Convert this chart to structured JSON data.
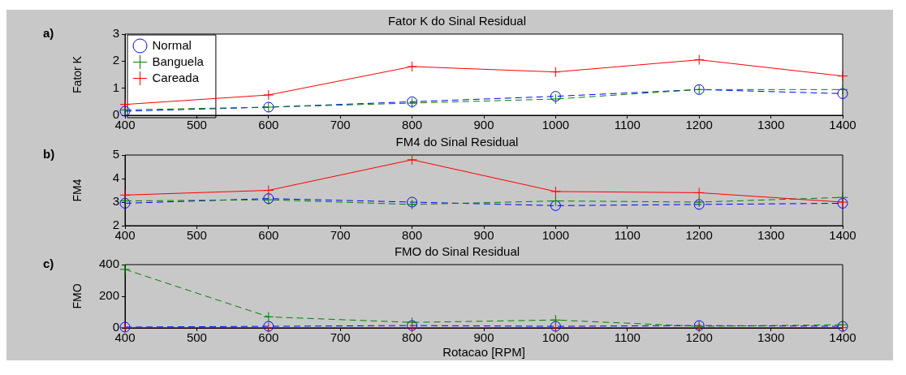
{
  "chart_data": [
    {
      "type": "line",
      "title": "Fator K do Sinal Residual",
      "ylabel": "Fator K",
      "annotations": [
        "a)"
      ],
      "x": [
        400,
        600,
        800,
        1000,
        1200,
        1400
      ],
      "xlim": [
        400,
        1400
      ],
      "xticks": [
        400,
        500,
        600,
        700,
        800,
        900,
        1000,
        1100,
        1200,
        1300,
        1400
      ],
      "ylim": [
        0,
        3
      ],
      "yticks": [
        0,
        1,
        2,
        3
      ],
      "grid": false,
      "legend": "top left",
      "series": [
        {
          "name": "Normal",
          "color": "#0000ff",
          "marker": "circle",
          "line_style": "dashed",
          "values": [
            0.15,
            0.3,
            0.5,
            0.7,
            0.95,
            0.8
          ]
        },
        {
          "name": "Banguela",
          "color": "#008000",
          "marker": "cross",
          "line_style": "dashed",
          "values": [
            0.2,
            0.3,
            0.45,
            0.6,
            0.95,
            0.95
          ]
        },
        {
          "name": "Careada",
          "color": "#ff0000",
          "marker": "cross",
          "line_style": "solid",
          "values": [
            0.4,
            0.75,
            1.8,
            1.6,
            2.05,
            1.45
          ]
        }
      ]
    },
    {
      "type": "line",
      "title": "FM4 do Sinal Residual",
      "ylabel": "FM4",
      "annotations": [
        "b)"
      ],
      "x": [
        400,
        600,
        800,
        1000,
        1200,
        1400
      ],
      "xlim": [
        400,
        1400
      ],
      "xticks": [
        400,
        500,
        600,
        700,
        800,
        900,
        1000,
        1100,
        1200,
        1300,
        1400
      ],
      "ylim": [
        2,
        5
      ],
      "yticks": [
        2,
        3,
        4,
        5
      ],
      "grid": false,
      "legend": false,
      "series": [
        {
          "color": "#0000ff",
          "marker": "circle",
          "line_style": "dashed",
          "values": [
            2.95,
            3.15,
            3.0,
            2.85,
            2.9,
            2.95
          ]
        },
        {
          "color": "#008000",
          "marker": "cross",
          "line_style": "dashed",
          "values": [
            3.05,
            3.1,
            2.9,
            3.05,
            3.0,
            3.2
          ]
        },
        {
          "color": "#ff0000",
          "marker": "cross",
          "line_style": "solid",
          "values": [
            3.3,
            3.5,
            4.8,
            3.45,
            3.4,
            3.0
          ]
        }
      ]
    },
    {
      "type": "line",
      "title": "FMO do Sinal Residual",
      "ylabel": "FMO",
      "xlabel": "Rotacao [RPM]",
      "annotations": [
        "c)"
      ],
      "x": [
        400,
        600,
        800,
        1000,
        1200,
        1400
      ],
      "xlim": [
        400,
        1400
      ],
      "xticks": [
        400,
        500,
        600,
        700,
        800,
        900,
        1000,
        1100,
        1200,
        1300,
        1400
      ],
      "ylim": [
        0,
        400
      ],
      "yticks": [
        0,
        200,
        400
      ],
      "grid": false,
      "legend": false,
      "series": [
        {
          "color": "#0000ff",
          "marker": "circle",
          "line_style": "dashed",
          "values": [
            5,
            10,
            15,
            10,
            15,
            10
          ]
        },
        {
          "color": "#008000",
          "marker": "cross",
          "line_style": "dashed",
          "values": [
            370,
            70,
            35,
            50,
            10,
            20
          ]
        },
        {
          "color": "#ff0000",
          "marker": "cross",
          "line_style": "solid",
          "values": [
            2,
            2,
            2,
            2,
            2,
            2
          ]
        }
      ]
    }
  ]
}
